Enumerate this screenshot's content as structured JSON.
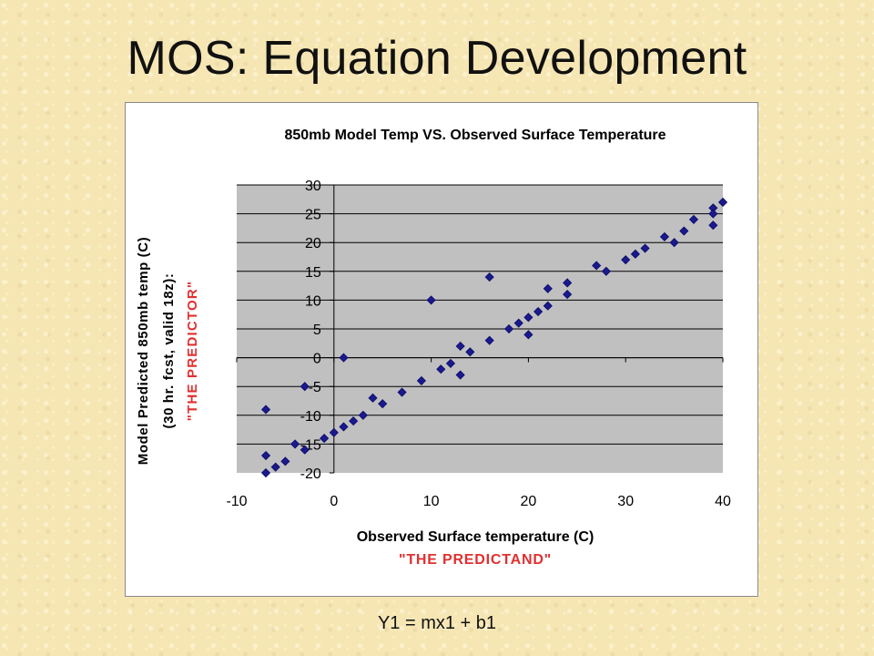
{
  "slide": {
    "title": "MOS: Equation Development",
    "caption": "Y1 = mx1 + b1"
  },
  "colors": {
    "plot_bg": "#c0c0c0",
    "marker": "#1a1a8c",
    "annotation": "#e03030",
    "text": "#000000"
  },
  "chart_data": {
    "type": "scatter",
    "title": "850mb Model Temp  VS. Observed Surface Temperature",
    "xlabel": "Observed Surface temperature (C)",
    "xlabel_note": "\"THE PREDICTAND\"",
    "ylabel_lines": [
      "Model Predicted 850mb temp (C)",
      "(30 hr. fcst, valid 18z):"
    ],
    "ylabel_note": "\"THE PREDICTOR\"",
    "xlim": [
      -10,
      40
    ],
    "ylim": [
      -20,
      30
    ],
    "xticks": [
      -10,
      0,
      10,
      20,
      30,
      40
    ],
    "yticks": [
      30,
      25,
      20,
      15,
      10,
      5,
      0,
      -5,
      -10,
      -15,
      -20
    ],
    "grid": "horizontal",
    "marker": "diamond",
    "points": [
      {
        "x": -7,
        "y": -9
      },
      {
        "x": -7,
        "y": -17
      },
      {
        "x": -7,
        "y": -20
      },
      {
        "x": -6,
        "y": -19
      },
      {
        "x": -5,
        "y": -18
      },
      {
        "x": -4,
        "y": -15
      },
      {
        "x": -3,
        "y": -16
      },
      {
        "x": -3,
        "y": -5
      },
      {
        "x": -1,
        "y": -14
      },
      {
        "x": 0,
        "y": -13
      },
      {
        "x": 1,
        "y": 0
      },
      {
        "x": 1,
        "y": -12
      },
      {
        "x": 2,
        "y": -11
      },
      {
        "x": 3,
        "y": -10
      },
      {
        "x": 4,
        "y": -7
      },
      {
        "x": 5,
        "y": -8
      },
      {
        "x": 7,
        "y": -6
      },
      {
        "x": 9,
        "y": -4
      },
      {
        "x": 10,
        "y": 10
      },
      {
        "x": 11,
        "y": -2
      },
      {
        "x": 12,
        "y": -1
      },
      {
        "x": 13,
        "y": 2
      },
      {
        "x": 13,
        "y": -3
      },
      {
        "x": 14,
        "y": 1
      },
      {
        "x": 16,
        "y": 14
      },
      {
        "x": 16,
        "y": 3
      },
      {
        "x": 18,
        "y": 5
      },
      {
        "x": 19,
        "y": 6
      },
      {
        "x": 20,
        "y": 7
      },
      {
        "x": 20,
        "y": 4
      },
      {
        "x": 21,
        "y": 8
      },
      {
        "x": 22,
        "y": 9
      },
      {
        "x": 22,
        "y": 12
      },
      {
        "x": 24,
        "y": 13
      },
      {
        "x": 24,
        "y": 11
      },
      {
        "x": 27,
        "y": 16
      },
      {
        "x": 28,
        "y": 15
      },
      {
        "x": 30,
        "y": 17
      },
      {
        "x": 31,
        "y": 18
      },
      {
        "x": 32,
        "y": 19
      },
      {
        "x": 34,
        "y": 21
      },
      {
        "x": 35,
        "y": 20
      },
      {
        "x": 36,
        "y": 22
      },
      {
        "x": 37,
        "y": 24
      },
      {
        "x": 39,
        "y": 26
      },
      {
        "x": 39,
        "y": 25
      },
      {
        "x": 39,
        "y": 23
      },
      {
        "x": 40,
        "y": 27
      }
    ]
  }
}
